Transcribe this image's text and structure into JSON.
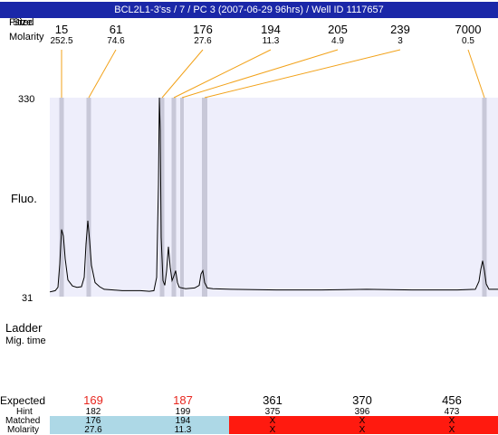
{
  "title": "BCL2L1-3'ss / 7 / PC 3 (2007-06-29 96hrs) / Well ID 1117657",
  "header": {
    "row1_label_a": "Fitted",
    "row1_label_b": "Size",
    "row2_label": "Molarity"
  },
  "axis": {
    "y_top": "330",
    "y_bottom": "31",
    "y_label": "Fluo.",
    "ladder_label": "Ladder",
    "mig_time_label": "Mig. time"
  },
  "colors": {
    "plot_bg": "#eeeefb",
    "band": "#c8c8d8",
    "guide_line": "#f2a21a",
    "trace": "#000000",
    "matched_bg": "#add8e6",
    "unmatched_bg": "#ff1a0f",
    "expected_highlight": "#e8261e"
  },
  "bottom_table": {
    "expected_label": "Expected",
    "hint_label": "Hint",
    "matched_label": "Matched",
    "molarity_label": "Molarity",
    "columns": [
      {
        "expected": "169",
        "hint": "182",
        "matched": "176",
        "molarity": "27.6",
        "highlight": true,
        "status": "matched"
      },
      {
        "expected": "187",
        "hint": "199",
        "matched": "194",
        "molarity": "11.3",
        "highlight": true,
        "status": "matched"
      },
      {
        "expected": "361",
        "hint": "375",
        "matched": "X",
        "molarity": "X",
        "highlight": false,
        "status": "unmatched"
      },
      {
        "expected": "370",
        "hint": "396",
        "matched": "X",
        "molarity": "X",
        "highlight": false,
        "status": "unmatched"
      },
      {
        "expected": "456",
        "hint": "473",
        "matched": "X",
        "molarity": "X",
        "highlight": false,
        "status": "unmatched"
      }
    ]
  },
  "chart_data": {
    "type": "line",
    "ylim": [
      31,
      330
    ],
    "yticks": [
      "31",
      "330"
    ],
    "ylabel": "Fluo.",
    "peaks": [
      {
        "size": "15",
        "molarity": "252.5"
      },
      {
        "size": "61",
        "molarity": "74.6"
      },
      {
        "size": "176",
        "molarity": "27.6"
      },
      {
        "size": "194",
        "molarity": "11.3"
      },
      {
        "size": "205",
        "molarity": "4.9"
      },
      {
        "size": "239",
        "molarity": "3"
      },
      {
        "size": "7000",
        "molarity": "0.5"
      }
    ],
    "trace": [
      [
        0,
        38
      ],
      [
        3,
        39
      ],
      [
        6,
        40
      ],
      [
        9,
        45
      ],
      [
        11,
        80
      ],
      [
        13,
        132
      ],
      [
        15,
        122
      ],
      [
        17,
        88
      ],
      [
        20,
        56
      ],
      [
        25,
        47
      ],
      [
        30,
        45
      ],
      [
        35,
        46
      ],
      [
        38,
        60
      ],
      [
        40,
        110
      ],
      [
        42,
        145
      ],
      [
        44,
        115
      ],
      [
        46,
        78
      ],
      [
        50,
        52
      ],
      [
        55,
        46
      ],
      [
        60,
        42
      ],
      [
        70,
        41
      ],
      [
        80,
        40
      ],
      [
        90,
        40
      ],
      [
        100,
        40
      ],
      [
        110,
        39
      ],
      [
        115,
        40
      ],
      [
        118,
        60
      ],
      [
        120,
        200
      ],
      [
        121,
        330
      ],
      [
        122,
        280
      ],
      [
        123,
        120
      ],
      [
        125,
        55
      ],
      [
        127,
        48
      ],
      [
        129,
        70
      ],
      [
        131,
        106
      ],
      [
        133,
        75
      ],
      [
        135,
        55
      ],
      [
        137,
        62
      ],
      [
        139,
        70
      ],
      [
        141,
        52
      ],
      [
        143,
        45
      ],
      [
        150,
        43
      ],
      [
        160,
        44
      ],
      [
        165,
        48
      ],
      [
        167,
        65
      ],
      [
        169,
        70
      ],
      [
        171,
        52
      ],
      [
        174,
        44
      ],
      [
        180,
        43
      ],
      [
        200,
        42
      ],
      [
        250,
        41
      ],
      [
        300,
        41
      ],
      [
        350,
        42
      ],
      [
        400,
        41
      ],
      [
        450,
        41
      ],
      [
        470,
        42
      ],
      [
        474,
        54
      ],
      [
        476,
        72
      ],
      [
        478,
        85
      ],
      [
        480,
        70
      ],
      [
        482,
        50
      ],
      [
        485,
        42
      ],
      [
        495,
        42
      ]
    ]
  }
}
